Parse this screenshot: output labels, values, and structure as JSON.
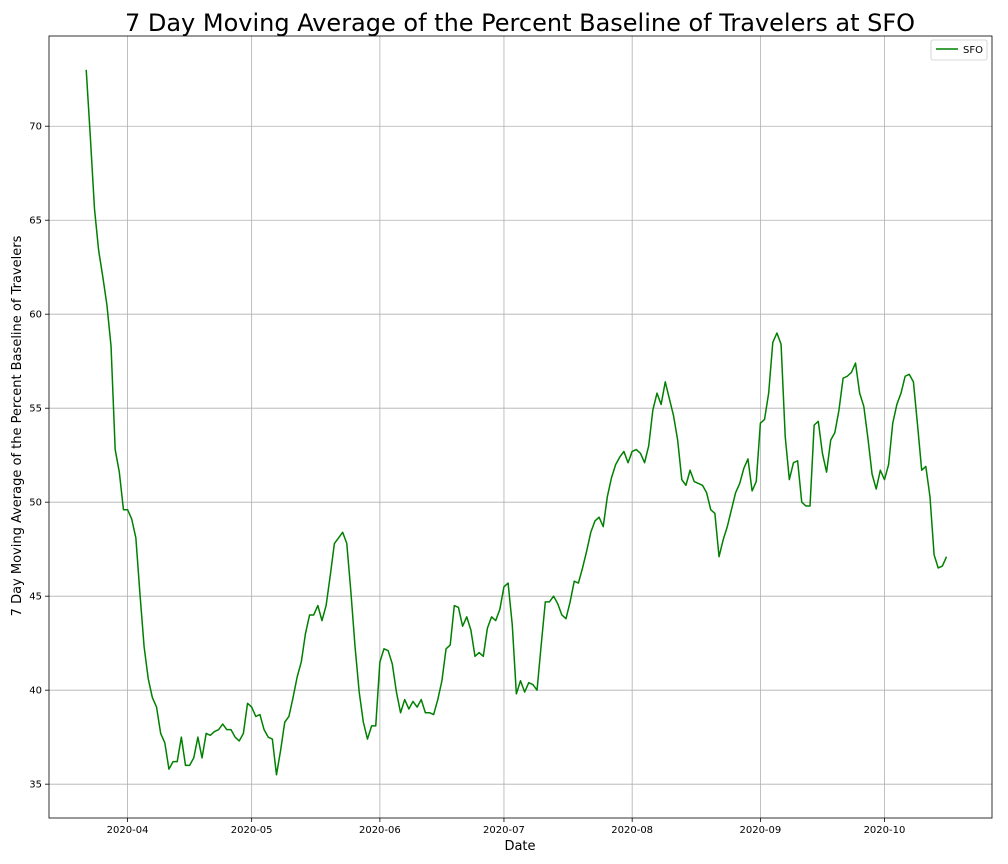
{
  "chart_data": {
    "type": "line",
    "title": "7 Day Moving Average of the Percent Baseline of Travelers at SFO",
    "xlabel": "Date",
    "ylabel": "7 Day Moving Average of the Percent Baseline of Travelers",
    "grid": true,
    "legend_position": "top-right",
    "x_axis": {
      "type": "date",
      "range": [
        "2020-03-13",
        "2020-10-27"
      ],
      "ticks": [
        {
          "date": "2020-04-01",
          "label": "2020-04"
        },
        {
          "date": "2020-05-01",
          "label": "2020-05"
        },
        {
          "date": "2020-06-01",
          "label": "2020-06"
        },
        {
          "date": "2020-07-01",
          "label": "2020-07"
        },
        {
          "date": "2020-08-01",
          "label": "2020-08"
        },
        {
          "date": "2020-09-01",
          "label": "2020-09"
        },
        {
          "date": "2020-10-01",
          "label": "2020-10"
        }
      ]
    },
    "y_axis": {
      "range": [
        33.2,
        74.8
      ],
      "ticks": [
        {
          "value": 35,
          "label": "35"
        },
        {
          "value": 40,
          "label": "40"
        },
        {
          "value": 45,
          "label": "45"
        },
        {
          "value": 50,
          "label": "50"
        },
        {
          "value": 55,
          "label": "55"
        },
        {
          "value": 60,
          "label": "60"
        },
        {
          "value": 65,
          "label": "65"
        },
        {
          "value": 70,
          "label": "70"
        }
      ]
    },
    "series": [
      {
        "name": "SFO",
        "color": "#008000",
        "start_date": "2020-03-22",
        "values": [
          73.0,
          69.4,
          65.6,
          63.4,
          62.0,
          60.5,
          58.3,
          52.8,
          51.6,
          49.6,
          49.6,
          49.1,
          48.1,
          45.1,
          42.3,
          40.6,
          39.6,
          39.1,
          37.7,
          37.2,
          35.8,
          36.2,
          36.2,
          37.5,
          36.0,
          36.0,
          36.4,
          37.5,
          36.4,
          37.7,
          37.6,
          37.8,
          37.9,
          38.2,
          37.9,
          37.9,
          37.5,
          37.3,
          37.7,
          39.3,
          39.1,
          38.6,
          38.7,
          37.9,
          37.5,
          37.4,
          35.5,
          36.8,
          38.3,
          38.6,
          39.6,
          40.7,
          41.5,
          43.0,
          44.0,
          44.0,
          44.5,
          43.7,
          44.5,
          46.1,
          47.8,
          48.1,
          48.4,
          47.8,
          45.2,
          42.3,
          39.9,
          38.3,
          37.4,
          38.1,
          38.1,
          41.5,
          42.2,
          42.1,
          41.4,
          39.9,
          38.8,
          39.5,
          39.0,
          39.4,
          39.1,
          39.5,
          38.8,
          38.8,
          38.7,
          39.5,
          40.5,
          42.2,
          42.4,
          44.5,
          44.4,
          43.4,
          43.9,
          43.2,
          41.8,
          42.0,
          41.8,
          43.3,
          43.9,
          43.7,
          44.3,
          45.5,
          45.7,
          43.5,
          39.8,
          40.5,
          39.9,
          40.4,
          40.3,
          40.0,
          42.4,
          44.7,
          44.7,
          45.0,
          44.6,
          44.0,
          43.8,
          44.7,
          45.8,
          45.7,
          46.5,
          47.4,
          48.4,
          49.0,
          49.2,
          48.7,
          50.3,
          51.3,
          52.0,
          52.4,
          52.7,
          52.1,
          52.7,
          52.8,
          52.6,
          52.1,
          53.0,
          54.9,
          55.8,
          55.2,
          56.4,
          55.5,
          54.6,
          53.3,
          51.2,
          50.9,
          51.7,
          51.1,
          51.0,
          50.9,
          50.5,
          49.6,
          49.4,
          47.1,
          48.0,
          48.7,
          49.6,
          50.5,
          51.0,
          51.8,
          52.3,
          50.6,
          51.1,
          54.2,
          54.4,
          55.8,
          58.5,
          59.0,
          58.4,
          53.5,
          51.2,
          52.1,
          52.2,
          50.0,
          49.8,
          49.8,
          54.1,
          54.3,
          52.6,
          51.6,
          53.3,
          53.7,
          54.9,
          56.6,
          56.7,
          56.9,
          57.4,
          55.8,
          55.1,
          53.4,
          51.5,
          50.7,
          51.7,
          51.2,
          52.0,
          54.2,
          55.2,
          55.8,
          56.7,
          56.8,
          56.4,
          54.1,
          51.7,
          51.9,
          50.3,
          47.2,
          46.5,
          46.6,
          47.1
        ]
      }
    ]
  }
}
